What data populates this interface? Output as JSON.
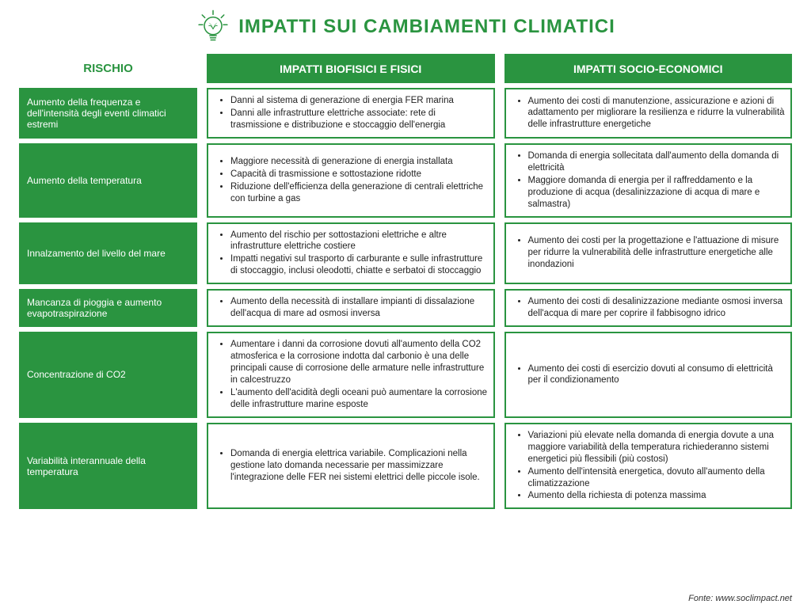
{
  "colors": {
    "accent": "#2a9440",
    "background": "#ffffff",
    "text": "#222222"
  },
  "title": "IMPATTI SUI CAMBIAMENTI CLIMATICI",
  "headers": {
    "risk": "RISCHIO",
    "biophysical": "IMPATTI BIOFISICI E FISICI",
    "socioeconomic": "IMPATTI SOCIO-ECONOMICI"
  },
  "rows": [
    {
      "risk": "Aumento della frequenza e dell'intensità degli eventi climatici estremi",
      "bio": [
        "Danni al sistema di generazione di energia FER marina",
        "Danni alle infrastrutture elettriche associate: rete di trasmissione e distribuzione e stoccaggio dell'energia"
      ],
      "socio": [
        "Aumento dei costi di manutenzione, assicurazione e azioni di adattamento per migliorare la resilienza e ridurre la vulnerabilità delle infrastrutture energetiche"
      ]
    },
    {
      "risk": "Aumento della temperatura",
      "bio": [
        "Maggiore necessità di generazione di energia installata",
        "Capacità di trasmissione e sottostazione ridotte",
        "Riduzione dell'efficienza della generazione di centrali elettriche con turbine a gas"
      ],
      "socio": [
        "Domanda di energia sollecitata dall'aumento della domanda di elettricità",
        "Maggiore domanda di energia per il raffreddamento e la produzione di acqua (desalinizzazione di acqua di mare e salmastra)"
      ]
    },
    {
      "risk": "Innalzamento del livello del mare",
      "bio": [
        "Aumento del rischio per sottostazioni elettriche e altre infrastrutture elettriche costiere",
        "Impatti negativi sul trasporto di carburante e sulle infrastrutture di stoccaggio, inclusi oleodotti, chiatte e serbatoi di stoccaggio"
      ],
      "socio": [
        "Aumento dei costi per la progettazione e l'attuazione di misure per ridurre la vulnerabilità delle infrastrutture energetiche alle inondazioni"
      ]
    },
    {
      "risk": "Mancanza di pioggia e aumento evapotraspirazione",
      "bio": [
        "Aumento della necessità di installare impianti di dissalazione dell'acqua di mare ad osmosi inversa"
      ],
      "socio": [
        "Aumento dei costi di desalinizzazione mediante osmosi inversa dell'acqua di mare per coprire il fabbisogno idrico"
      ]
    },
    {
      "risk": "Concentrazione di CO2",
      "bio": [
        "Aumentare i danni da corrosione dovuti all'aumento della CO2 atmosferica e la corrosione indotta dal carbonio è una delle principali cause di corrosione delle armature nelle infrastrutture in calcestruzzo",
        "L'aumento dell'acidità degli oceani può aumentare la corrosione delle infrastrutture marine esposte"
      ],
      "socio": [
        "Aumento dei costi di esercizio dovuti al consumo di elettricità per il condizionamento"
      ]
    },
    {
      "risk": "Variabilità interannuale della temperatura",
      "bio": [
        "Domanda di energia elettrica variabile. Complicazioni nella gestione lato domanda necessarie per massimizzare l'integrazione delle FER nei sistemi elettrici delle piccole isole."
      ],
      "socio": [
        "Variazioni più elevate nella domanda di energia dovute a una maggiore variabilità della temperatura richiederanno sistemi energetici più flessibili (più costosi)",
        "Aumento dell'intensità energetica, dovuto all'aumento della climatizzazione",
        "Aumento della richiesta di potenza massima"
      ]
    }
  ],
  "source": "Fonte: www.soclimpact.net"
}
